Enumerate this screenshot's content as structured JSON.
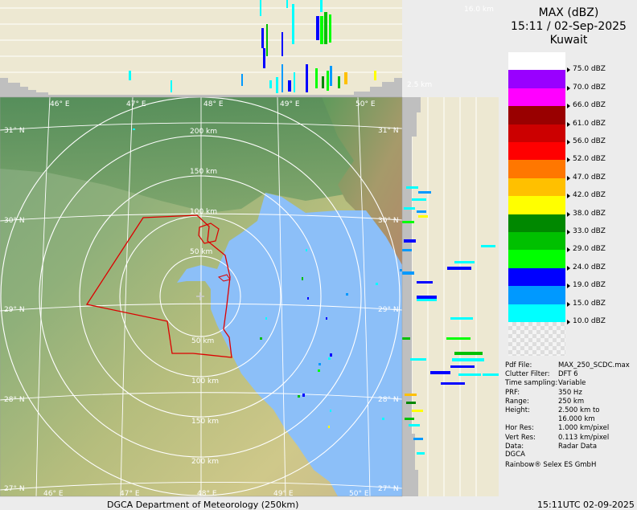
{
  "header": {
    "product": "MAX (dBZ)",
    "datetime": "15:11 / 02-Sep-2025",
    "site": "Kuwait"
  },
  "legend": [
    {
      "label": "75.0 dBZ",
      "color": "#ffffff"
    },
    {
      "label": "70.0 dBZ",
      "color": "#9900ff"
    },
    {
      "label": "66.0 dBZ",
      "color": "#ff00ff"
    },
    {
      "label": "61.0 dBZ",
      "color": "#990000"
    },
    {
      "label": "56.0 dBZ",
      "color": "#cc0000"
    },
    {
      "label": "52.0 dBZ",
      "color": "#ff0000"
    },
    {
      "label": "47.0 dBZ",
      "color": "#ff7700"
    },
    {
      "label": "42.0 dBZ",
      "color": "#ffc000"
    },
    {
      "label": "38.0 dBZ",
      "color": "#ffff00"
    },
    {
      "label": "33.0 dBZ",
      "color": "#008800"
    },
    {
      "label": "29.0 dBZ",
      "color": "#00c000"
    },
    {
      "label": "24.0 dBZ",
      "color": "#00ff00"
    },
    {
      "label": "19.0 dBZ",
      "color": "#0000ff"
    },
    {
      "label": "15.0 dBZ",
      "color": "#0099ff"
    },
    {
      "label": "10.0 dBZ",
      "color": "#00ffff"
    }
  ],
  "info": [
    {
      "key": "Pdf File:",
      "value": "MAX_250_SCDC.max"
    },
    {
      "key": "Clutter Filter:",
      "value": "DFT 6"
    },
    {
      "key": "Time sampling:",
      "value": "Variable"
    },
    {
      "key": "PRF:",
      "value": "350 Hz"
    },
    {
      "key": "Range:",
      "value": "250 km"
    },
    {
      "key": "Height:",
      "value": "2.500 km to"
    },
    {
      "key": "",
      "value": "16.000 km"
    },
    {
      "key": "Hor Res:",
      "value": "1.000 km/pixel"
    },
    {
      "key": "Vert Res:",
      "value": "0.113 km/pixel"
    },
    {
      "key": "Data:",
      "value": "Radar Data"
    }
  ],
  "credits": {
    "org": "DGCA",
    "software": "Rainbow® Selex ES GmbH"
  },
  "footer": {
    "left": "DGCA Department of Meteorology (250km)",
    "right": "15:11UTC 02-09-2025"
  },
  "map": {
    "lon_labels": [
      "46° E",
      "47° E",
      "48° E",
      "49° E",
      "50° E"
    ],
    "lat_labels": [
      "31° N",
      "30° N",
      "29° N",
      "28° N",
      "27° N"
    ],
    "range_rings_km": [
      "50 km",
      "100 km",
      "150 km",
      "200 km"
    ],
    "height_top": "16.0 km",
    "height_bottom": "2.5 km"
  }
}
